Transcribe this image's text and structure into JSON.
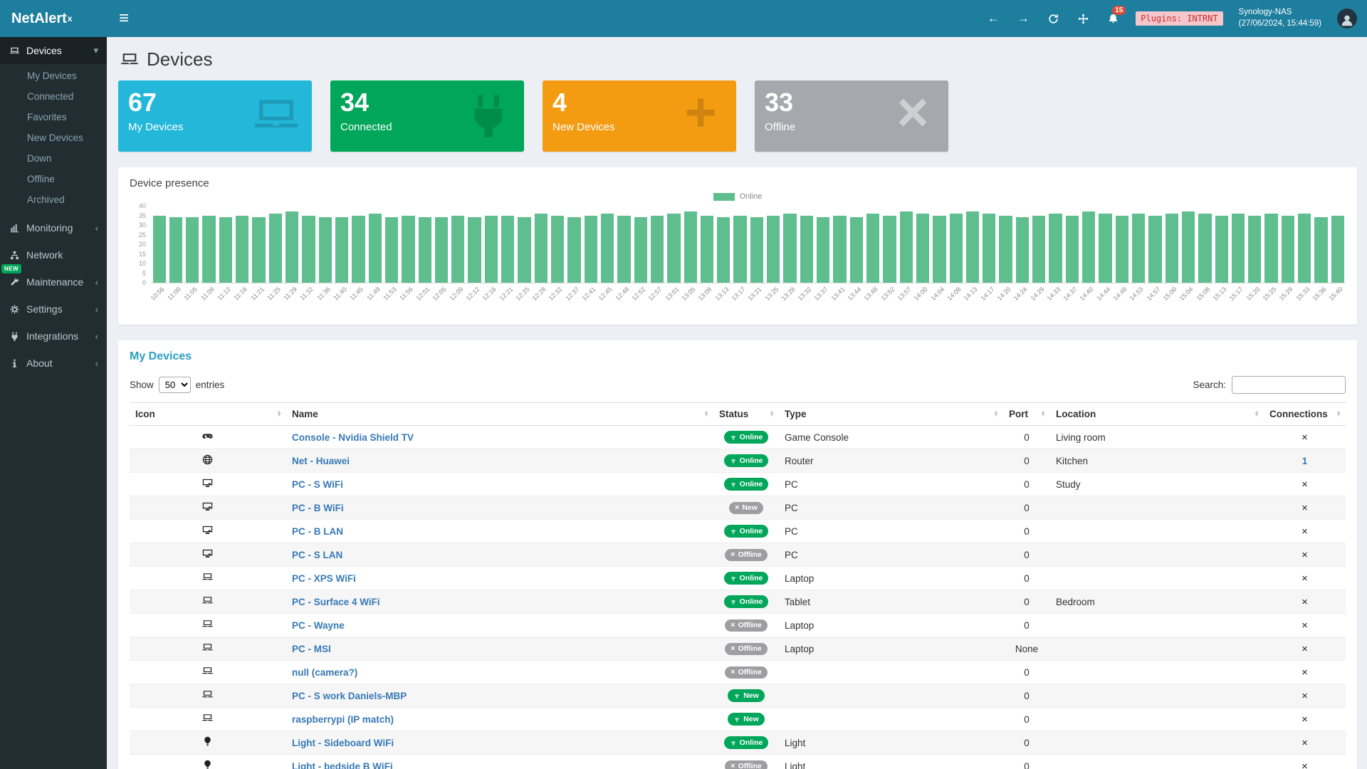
{
  "header": {
    "logo": {
      "text": "NetAlert",
      "sup": "x"
    },
    "notifications_count": "15",
    "plugins_label": "Plugins: INTRNT",
    "host": "Synology-NAS",
    "timestamp": "(27/06/2024, 15:44:59)"
  },
  "sidebar": {
    "items": [
      {
        "label": "Devices",
        "icon": "laptop-icon",
        "active": true,
        "chevron": "down",
        "submenu": [
          "My Devices",
          "Connected",
          "Favorites",
          "New Devices",
          "Down",
          "Offline",
          "Archived"
        ]
      },
      {
        "label": "Monitoring",
        "icon": "chart-icon",
        "chevron": "left"
      },
      {
        "label": "Network",
        "icon": "network-icon"
      },
      {
        "label": "Maintenance",
        "icon": "wrench-icon",
        "chevron": "left",
        "badge": "NEW"
      },
      {
        "label": "Settings",
        "icon": "gear-icon",
        "chevron": "left"
      },
      {
        "label": "Integrations",
        "icon": "plug-icon",
        "chevron": "left"
      },
      {
        "label": "About",
        "icon": "info-icon",
        "chevron": "left"
      }
    ]
  },
  "page": {
    "title": "Devices"
  },
  "summary_cards": [
    {
      "value": "67",
      "label": "My Devices",
      "color": "#23b7d9",
      "icon": "laptop-icon"
    },
    {
      "value": "34",
      "label": "Connected",
      "color": "#00a65a",
      "icon": "plug-icon"
    },
    {
      "value": "4",
      "label": "New Devices",
      "color": "#f39c12",
      "icon": "plus-icon"
    },
    {
      "value": "33",
      "label": "Offline",
      "color": "#a5a8ac",
      "icon": "x-icon"
    }
  ],
  "chart_data": {
    "type": "bar",
    "title": "Device presence",
    "legend_position": "top",
    "grid": false,
    "ylim": [
      0,
      40
    ],
    "yticks": [
      0,
      5,
      10,
      15,
      20,
      25,
      30,
      35,
      40
    ],
    "legend": [
      {
        "label": "Online",
        "color": "#5fbe8d"
      }
    ],
    "x": [
      "10:56",
      "11:00",
      "11:05",
      "11:08",
      "11:12",
      "11:16",
      "11:21",
      "11:25",
      "11:29",
      "11:32",
      "11:36",
      "11:40",
      "11:45",
      "11:49",
      "11:53",
      "11:56",
      "12:01",
      "12:05",
      "12:09",
      "12:12",
      "12:16",
      "12:21",
      "12:25",
      "12:28",
      "12:32",
      "12:37",
      "12:41",
      "12:45",
      "12:48",
      "12:52",
      "12:57",
      "13:01",
      "13:05",
      "13:08",
      "13:13",
      "13:17",
      "13:21",
      "13:25",
      "13:28",
      "13:32",
      "13:37",
      "13:41",
      "13:44",
      "13:48",
      "13:52",
      "13:57",
      "14:00",
      "14:04",
      "14:08",
      "14:13",
      "14:17",
      "14:20",
      "14:24",
      "14:29",
      "14:33",
      "14:37",
      "14:40",
      "14:44",
      "14:48",
      "14:53",
      "14:57",
      "15:00",
      "15:04",
      "15:08",
      "15:13",
      "15:17",
      "15:20",
      "15:25",
      "15:29",
      "15:33",
      "15:36",
      "15:40"
    ],
    "series": [
      {
        "name": "Online",
        "color": "#5fbe8d",
        "values": [
          35,
          34,
          34,
          35,
          34,
          35,
          34,
          36,
          37,
          35,
          34,
          34,
          35,
          36,
          34,
          35,
          34,
          34,
          35,
          34,
          35,
          35,
          34,
          36,
          35,
          34,
          35,
          36,
          35,
          34,
          35,
          36,
          37,
          35,
          34,
          35,
          34,
          35,
          36,
          35,
          34,
          35,
          34,
          36,
          35,
          37,
          36,
          35,
          36,
          37,
          36,
          35,
          34,
          35,
          36,
          35,
          37,
          36,
          35,
          36,
          35,
          36,
          37,
          36,
          35,
          36,
          35,
          36,
          35,
          36,
          34,
          35
        ]
      }
    ]
  },
  "devices_panel": {
    "title": "My Devices",
    "show_label": "Show",
    "page_size": "50",
    "entries_label": "entries",
    "search_label": "Search:",
    "columns": [
      "Icon",
      "Name",
      "Status",
      "Type",
      "Port",
      "Location",
      "Connections"
    ],
    "rows": [
      {
        "icon": "gamepad-icon",
        "name": "Console - Nvidia Shield TV",
        "status": {
          "label": "Online",
          "color": "green",
          "icon": "wifi"
        },
        "type": "Game Console",
        "port": "0",
        "location": "Living room",
        "connections": "x"
      },
      {
        "icon": "globe-icon",
        "name": "Net - Huawei",
        "status": {
          "label": "Online",
          "color": "green",
          "icon": "wifi"
        },
        "type": "Router",
        "port": "0",
        "location": "Kitchen",
        "connections": "1"
      },
      {
        "icon": "desktop-icon",
        "name": "PC - S WiFi",
        "status": {
          "label": "Online",
          "color": "green",
          "icon": "wifi"
        },
        "type": "PC",
        "port": "0",
        "location": "Study",
        "connections": "x"
      },
      {
        "icon": "desktop-icon",
        "name": "PC - B WiFi",
        "status": {
          "label": "New",
          "color": "gray",
          "icon": "x"
        },
        "type": "PC",
        "port": "0",
        "location": "",
        "connections": "x"
      },
      {
        "icon": "desktop-icon",
        "name": "PC - B LAN",
        "status": {
          "label": "Online",
          "color": "green",
          "icon": "wifi"
        },
        "type": "PC",
        "port": "0",
        "location": "",
        "connections": "x"
      },
      {
        "icon": "desktop-icon",
        "name": "PC - S LAN",
        "status": {
          "label": "Offline",
          "color": "gray",
          "icon": "x"
        },
        "type": "PC",
        "port": "0",
        "location": "",
        "connections": "x"
      },
      {
        "icon": "laptop-icon",
        "name": "PC - XPS WiFi",
        "status": {
          "label": "Online",
          "color": "green",
          "icon": "wifi"
        },
        "type": "Laptop",
        "port": "0",
        "location": "",
        "connections": "x"
      },
      {
        "icon": "laptop-icon",
        "name": "PC - Surface 4 WiFi",
        "status": {
          "label": "Online",
          "color": "green",
          "icon": "wifi"
        },
        "type": "Tablet",
        "port": "0",
        "location": "Bedroom",
        "connections": "x"
      },
      {
        "icon": "laptop-icon",
        "name": "PC - Wayne",
        "status": {
          "label": "Offline",
          "color": "gray",
          "icon": "x"
        },
        "type": "Laptop",
        "port": "0",
        "location": "",
        "connections": "x"
      },
      {
        "icon": "laptop-icon",
        "name": "PC - MSI",
        "status": {
          "label": "Offline",
          "color": "gray",
          "icon": "x"
        },
        "type": "Laptop",
        "port": "None",
        "location": "",
        "connections": "x"
      },
      {
        "icon": "laptop-icon",
        "name": "null (camera?)",
        "status": {
          "label": "Offline",
          "color": "gray",
          "icon": "x"
        },
        "type": "",
        "port": "0",
        "location": "",
        "connections": "x"
      },
      {
        "icon": "laptop-icon",
        "name": "PC - S work Daniels-MBP",
        "status": {
          "label": "New",
          "color": "green",
          "icon": "wifi"
        },
        "type": "",
        "port": "0",
        "location": "",
        "connections": "x"
      },
      {
        "icon": "laptop-icon",
        "name": "raspberrypi (IP match)",
        "status": {
          "label": "New",
          "color": "green",
          "icon": "wifi"
        },
        "type": "",
        "port": "0",
        "location": "",
        "connections": "x"
      },
      {
        "icon": "lightbulb-icon",
        "name": "Light - Sideboard WiFi",
        "status": {
          "label": "Online",
          "color": "green",
          "icon": "wifi"
        },
        "type": "Light",
        "port": "0",
        "location": "",
        "connections": "x"
      },
      {
        "icon": "lightbulb-icon",
        "name": "Light - bedside B WiFi",
        "status": {
          "label": "Offline",
          "color": "gray",
          "icon": "x"
        },
        "type": "Light",
        "port": "0",
        "location": "",
        "connections": "x"
      }
    ]
  }
}
